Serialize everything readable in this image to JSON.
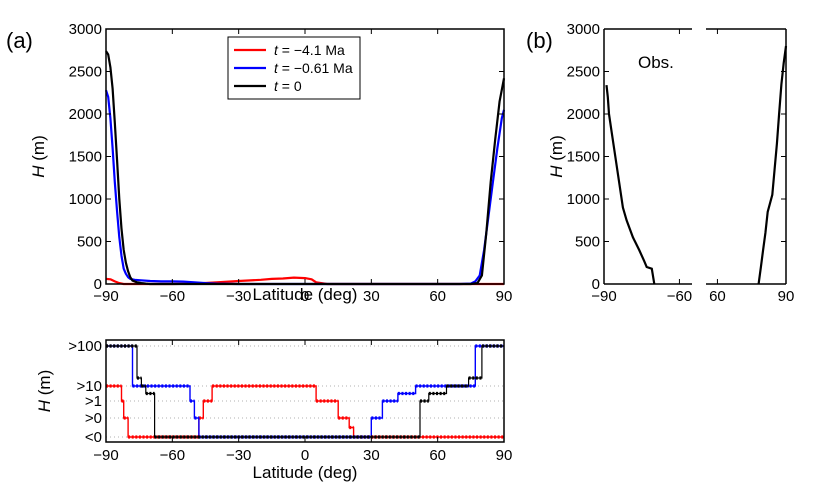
{
  "chart_data": [
    {
      "panel": "(a)",
      "type": "line",
      "xlabel": "Latitude (deg)",
      "ylabel_var": "H",
      "ylabel_unit": "(m)",
      "xlim": [
        -90,
        90
      ],
      "ylim": [
        0,
        3000
      ],
      "xticks": [
        -90,
        -60,
        -30,
        0,
        30,
        60,
        90
      ],
      "yticks": [
        0,
        500,
        1000,
        1500,
        2000,
        2500,
        3000
      ],
      "legend_position": "top-center",
      "series": [
        {
          "name": "t = −4.1 Ma",
          "legend_var": "t",
          "legend_rest": " = −4.1 Ma",
          "color": "#ff0000",
          "x": [
            -90,
            -88,
            -86,
            -84,
            -82,
            -80,
            -70,
            -60,
            -50,
            -40,
            -30,
            -20,
            -15,
            -10,
            -5,
            0,
            3,
            5,
            10,
            20,
            40,
            60,
            80,
            90
          ],
          "y": [
            60,
            55,
            30,
            10,
            0,
            0,
            0,
            0,
            5,
            20,
            35,
            50,
            60,
            65,
            75,
            70,
            55,
            20,
            0,
            0,
            0,
            0,
            0,
            0
          ]
        },
        {
          "name": "t = −0.61 Ma",
          "legend_var": "t",
          "legend_rest": " = −0.61 Ma",
          "color": "#0000ff",
          "x": [
            -90,
            -89,
            -88,
            -87,
            -86,
            -85,
            -84,
            -83,
            -82,
            -81,
            -80,
            -79,
            -77,
            -75,
            -70,
            -65,
            -60,
            -55,
            -50,
            -45,
            -40,
            -30,
            -20,
            -10,
            0,
            10,
            20,
            30,
            40,
            50,
            60,
            70,
            75,
            77,
            79,
            81,
            83,
            85,
            87,
            89,
            90
          ],
          "y": [
            2280,
            2200,
            1950,
            1600,
            1200,
            850,
            550,
            330,
            180,
            120,
            80,
            60,
            50,
            45,
            35,
            30,
            30,
            28,
            20,
            10,
            5,
            0,
            0,
            0,
            0,
            0,
            0,
            0,
            0,
            0,
            0,
            0,
            5,
            30,
            100,
            400,
            800,
            1200,
            1600,
            1950,
            2050
          ]
        },
        {
          "name": "t = 0",
          "legend_var": "t",
          "legend_rest": " = 0",
          "color": "#000000",
          "x": [
            -90,
            -89,
            -88,
            -87,
            -86,
            -85,
            -84,
            -83,
            -82,
            -81,
            -80,
            -79,
            -78,
            -76,
            -74,
            -72,
            -70,
            -65,
            -60,
            -50,
            -40,
            -30,
            -20,
            -10,
            0,
            10,
            20,
            30,
            40,
            50,
            60,
            70,
            75,
            78,
            80,
            82,
            84,
            86,
            88,
            90
          ],
          "y": [
            2740,
            2700,
            2550,
            2300,
            1900,
            1450,
            1000,
            650,
            400,
            250,
            150,
            80,
            40,
            20,
            10,
            5,
            0,
            0,
            0,
            0,
            0,
            0,
            0,
            0,
            0,
            0,
            0,
            0,
            0,
            0,
            0,
            0,
            0,
            10,
            100,
            600,
            1200,
            1700,
            2150,
            2420
          ]
        }
      ]
    },
    {
      "panel": "(b)",
      "type": "line",
      "annotation": "Obs.",
      "ylabel_var": "H",
      "ylabel_unit": "(m)",
      "ylim": [
        0,
        3000
      ],
      "yticks": [
        0,
        500,
        1000,
        1500,
        2000,
        2500,
        3000
      ],
      "left_segment": {
        "xlim": [
          -90,
          -55
        ],
        "xticks": [
          -90,
          -60
        ]
      },
      "right_segment": {
        "xlim": [
          55,
          90
        ],
        "xticks": [
          60,
          90
        ]
      },
      "series": [
        {
          "name": "Obs. south",
          "color": "#000000",
          "x": [
            -89,
            -88.5,
            -88,
            -87,
            -85.5,
            -84,
            -82.5,
            -81,
            -78.5,
            -76,
            -74,
            -73,
            -71,
            -70
          ],
          "y": [
            2340,
            2200,
            2000,
            1800,
            1500,
            1200,
            900,
            750,
            550,
            400,
            270,
            200,
            180,
            0
          ]
        },
        {
          "name": "Obs. north",
          "color": "#000000",
          "x": [
            78,
            79,
            80,
            81,
            82,
            84,
            85,
            86,
            87,
            88,
            89,
            90
          ],
          "y": [
            0,
            200,
            400,
            600,
            850,
            1050,
            1350,
            1650,
            2000,
            2350,
            2600,
            2800
          ]
        }
      ]
    },
    {
      "panel": "(a-bottom)",
      "type": "line",
      "xlabel": "Latitude (deg)",
      "ylabel_var": "H",
      "ylabel_unit": "(m)",
      "xlim": [
        -90,
        90
      ],
      "xticks": [
        -90,
        -60,
        -30,
        0,
        30,
        60,
        90
      ],
      "levels": [
        "<0",
        ">0",
        ">1",
        ">10",
        ">100"
      ],
      "grid": "dotted horizontal",
      "series": [
        {
          "name": "t = −4.1 Ma",
          "color": "#ff0000",
          "x": [
            -90,
            -83,
            -83,
            -82,
            -82,
            -80,
            -80,
            -48,
            -48,
            -46,
            -46,
            -42,
            -42,
            5,
            5,
            15,
            15,
            20,
            20,
            22,
            22,
            90
          ],
          "level": [
            3,
            3,
            2,
            2,
            1,
            1,
            0,
            0,
            1,
            1,
            2,
            2,
            3,
            3,
            2,
            2,
            1,
            1,
            0.5,
            0.5,
            0,
            0
          ]
        },
        {
          "name": "t = −0.61 Ma",
          "color": "#0000ff",
          "x": [
            -90,
            -78,
            -78,
            -52,
            -52,
            -50,
            -50,
            -48,
            -48,
            30,
            30,
            35,
            35,
            42,
            42,
            50,
            50,
            77,
            77,
            90
          ],
          "level": [
            4,
            4,
            3,
            3,
            2,
            2,
            1,
            1,
            0,
            0,
            1,
            1,
            2,
            2,
            2.5,
            2.5,
            3,
            3,
            4,
            4
          ]
        },
        {
          "name": "t = 0",
          "color": "#000000",
          "x": [
            -90,
            -76,
            -76,
            -74,
            -74,
            -72,
            -72,
            -68,
            -68,
            52,
            52,
            56,
            56,
            64,
            64,
            74,
            74,
            80,
            80,
            90
          ],
          "level": [
            4,
            4,
            3.5,
            3.5,
            3,
            3,
            2.5,
            2.5,
            0,
            0,
            2,
            2,
            2.5,
            2.5,
            3,
            3,
            3.5,
            3.5,
            4,
            4
          ]
        }
      ]
    }
  ]
}
